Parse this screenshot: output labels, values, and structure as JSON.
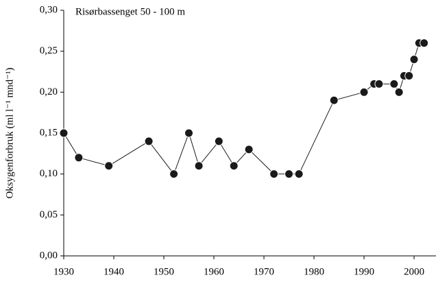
{
  "chart_data": {
    "type": "line",
    "annotation": "Risørbassenget 50 - 100 m",
    "y_label": "Oksygenforbruk (ml l⁻¹ mnd⁻¹)",
    "x": [
      1930,
      1933,
      1939,
      1947,
      1952,
      1955,
      1957,
      1961,
      1964,
      1967,
      1972,
      1975,
      1977,
      1984,
      1990,
      1992,
      1993,
      1996,
      1997,
      1998,
      1999,
      2000,
      2001,
      2002
    ],
    "values": [
      0.15,
      0.12,
      0.11,
      0.14,
      0.1,
      0.15,
      0.11,
      0.14,
      0.11,
      0.13,
      0.1,
      0.1,
      0.1,
      0.19,
      0.2,
      0.21,
      0.21,
      0.21,
      0.2,
      0.22,
      0.22,
      0.24,
      0.26,
      0.26
    ],
    "color": "#1a1a1a",
    "xlim": [
      1930,
      2003
    ],
    "xticks": [
      1930,
      1940,
      1950,
      1960,
      1970,
      1980,
      1990,
      2000
    ],
    "ylim": [
      0,
      0.3
    ],
    "yticks": [
      {
        "value": 0,
        "label": "0,00"
      },
      {
        "value": 0.05,
        "label": "0,05"
      },
      {
        "value": 0.1,
        "label": "0,10"
      },
      {
        "value": 0.15,
        "label": "0,15"
      },
      {
        "value": 0.2,
        "label": "0,20"
      },
      {
        "value": 0.25,
        "label": "0,25"
      },
      {
        "value": 0.3,
        "label": "0,30"
      }
    ]
  }
}
